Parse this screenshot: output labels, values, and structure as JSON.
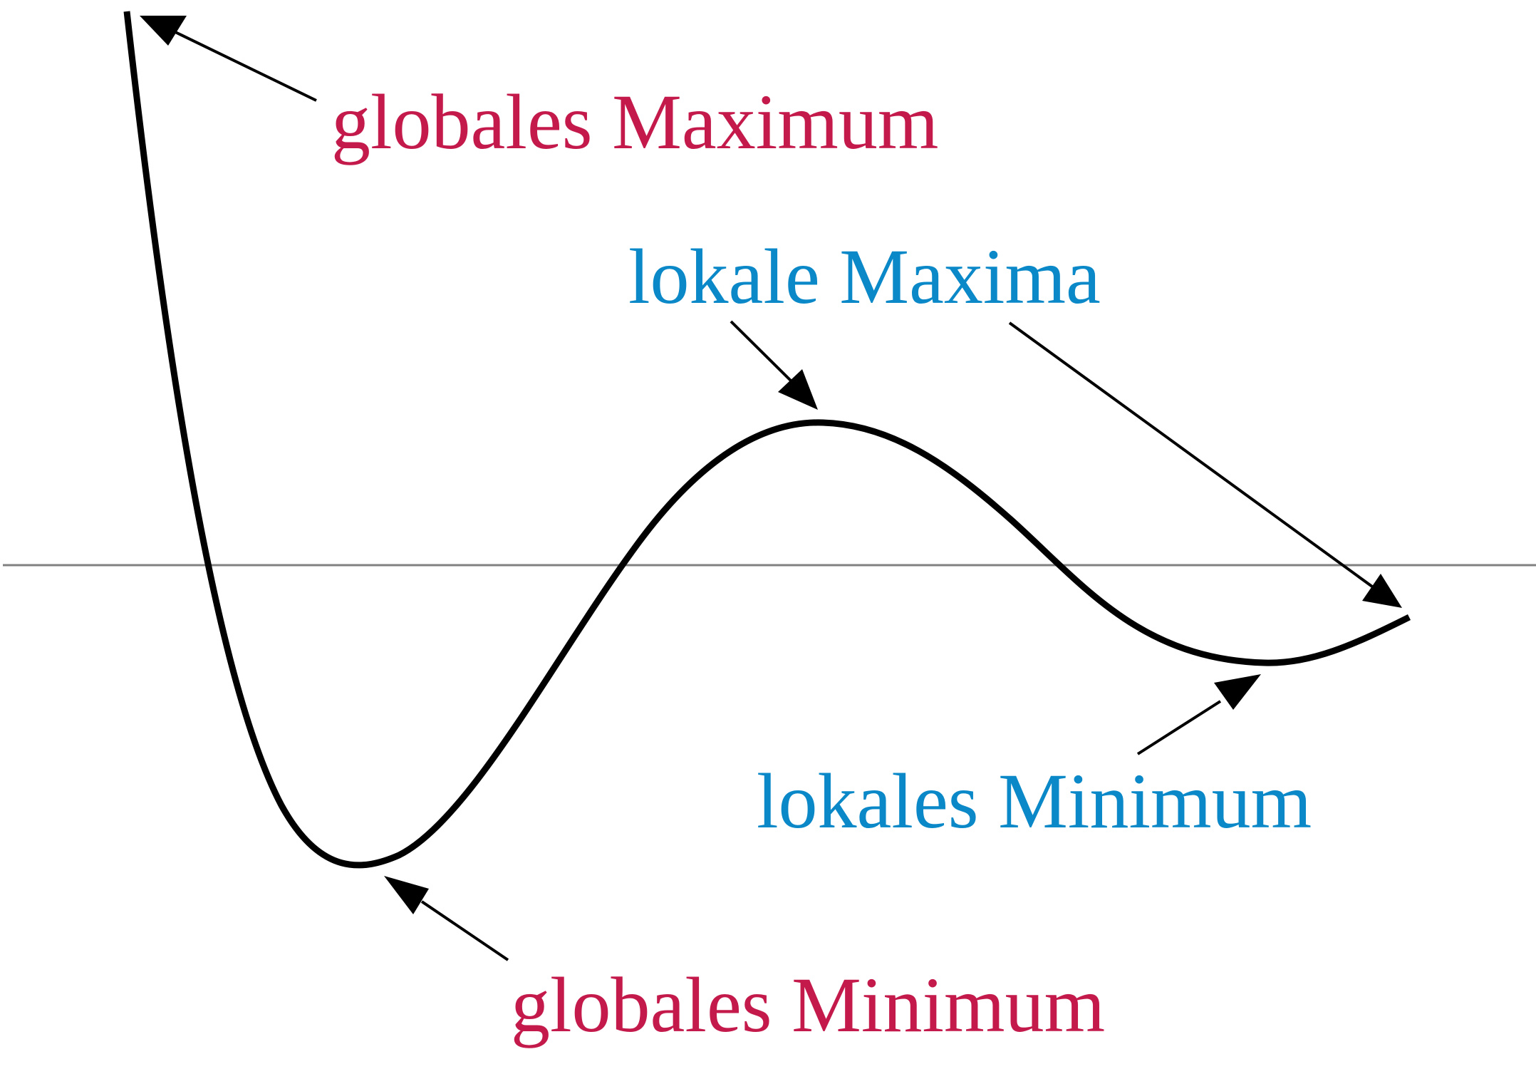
{
  "labels": {
    "global_max": "globales Maximum",
    "global_min": "globales Minimum",
    "local_max": "lokale Maxima",
    "local_min": "lokales Minimum"
  },
  "colors": {
    "global": "#c41a4b",
    "local": "#0a88c8",
    "curve": "#000000",
    "axis": "#808080",
    "arrow": "#000000"
  }
}
